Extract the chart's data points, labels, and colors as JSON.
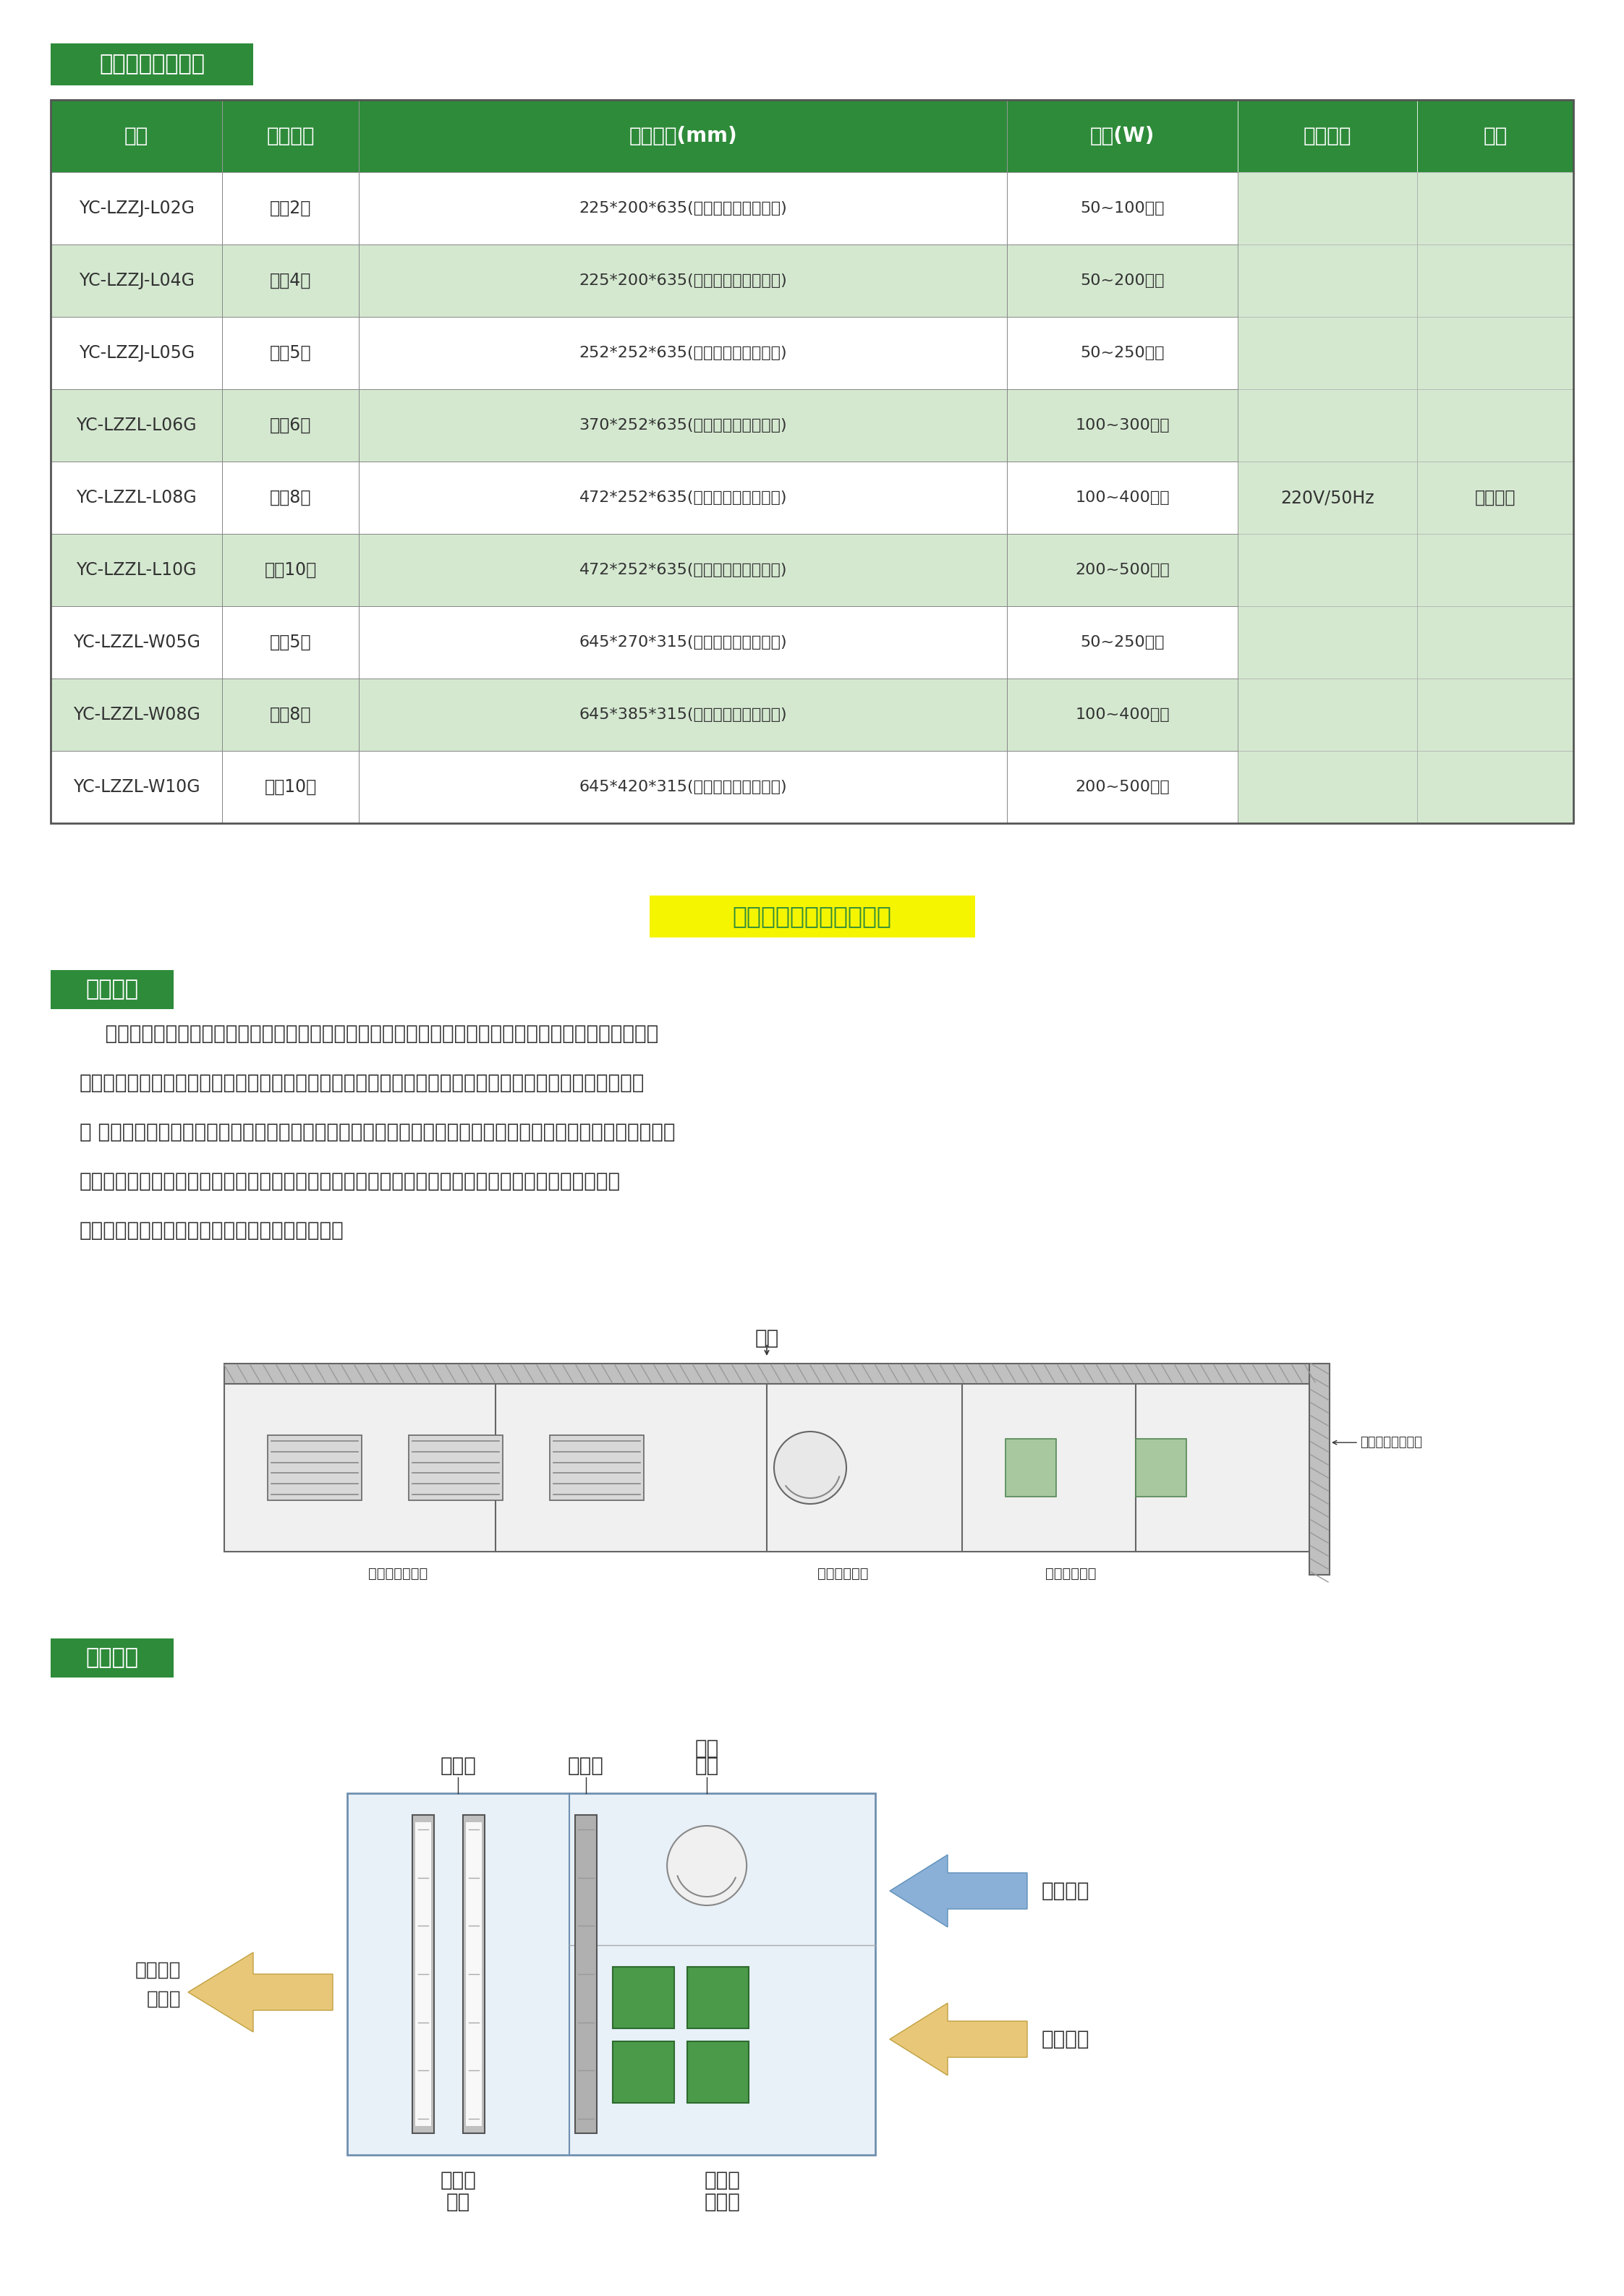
{
  "title_badge": "离子发生器选型表",
  "table_header": [
    "型号",
    "设备名称",
    "组件规格(mm)",
    "功率(W)",
    "电源电压",
    "品牌"
  ],
  "table_rows": [
    [
      "YC-LZZJ-L02G",
      "立式2管",
      "225*200*635(高度含电源基座部分)",
      "50~100可调",
      "",
      ""
    ],
    [
      "YC-LZZJ-L04G",
      "立式4管",
      "225*200*635(高度含电源基座部分)",
      "50~200可调",
      "",
      ""
    ],
    [
      "YC-LZZJ-L05G",
      "立式5管",
      "252*252*635(高度含电源基座部分)",
      "50~250可调",
      "",
      ""
    ],
    [
      "YC-LZZL-L06G",
      "立式6管",
      "370*252*635(高度含电源基座部分)",
      "100~300可调",
      "",
      ""
    ],
    [
      "YC-LZZL-L08G",
      "立式8管",
      "472*252*635(高度含电源基座部分)",
      "100~400可调",
      "",
      ""
    ],
    [
      "YC-LZZL-L10G",
      "立式10管",
      "472*252*635(高度含电源基座部分)",
      "200~500可调",
      "220V/50Hz",
      "华东科净"
    ],
    [
      "YC-LZZL-W05G",
      "卧式5管",
      "645*270*315(高度含电源基座部分)",
      "50~250可调",
      "",
      ""
    ],
    [
      "YC-LZZL-W08G",
      "卧式8管",
      "645*385*315(高度含电源基座部分)",
      "100~400可调",
      "",
      ""
    ],
    [
      "YC-LZZL-W10G",
      "卧式10管",
      "645*420*315(高度含电源基座部分)",
      "200~500可调",
      "",
      ""
    ]
  ],
  "section2_title": "二、离子除臭新风净化器",
  "section_badge": "工艺说明",
  "section_badge2": "工艺流程",
  "para_lines": [
    "    离子新风装置是以离子（活性氧离子）发生装置为核心，其利用高频高压的特殊脉冲放电方式，将新鲜空",
    "气中的氧分子分解为高密度的活性氧离子（介于氧分子和臭氧之间的一种过渡态氧），通过风机将活性氧离",
    "子 送入构筑物空间内，有效氧化分解污染气体的致臭分子和挥发性有机化合物，从而提高区域空间空气质量，改",
    "善工作环境；离子发生装置产生的正负氧离子同时能有效地破坏空气中细菌的生存环境，甚至杀灭部分",
    "细菌（具有权威检测报告），降低室内细菌浓度。"
  ],
  "header_bg": "#2e8b3a",
  "header_text": "#ffffff",
  "row_odd_bg": "#ffffff",
  "row_even_bg": "#d4e8d0",
  "last_col_bg": "#d4e8d0",
  "badge_bg": "#2e8b3a",
  "badge_text": "#ffffff",
  "section2_bg": "#f5f500",
  "section2_text": "#2e8b3a",
  "body_text_color": "#333333",
  "table_border": "#888888",
  "flow_box_bg": "#e8f0ff",
  "flow_box_border": "#6090c0",
  "flow_divider_color": "#888888",
  "flow_filter_bg": "#d0d0d0",
  "flow_filter_border": "#888888",
  "flow_ion_color": "#4a9a4a",
  "arrow_blue": "#6090c0",
  "arrow_yellow": "#e8c060"
}
